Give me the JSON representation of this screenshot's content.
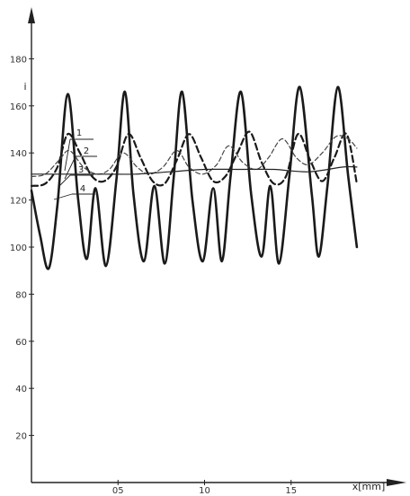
{
  "chart_data": {
    "type": "line",
    "title": "",
    "xlabel": "x[mm]",
    "ylabel": "i",
    "xlim": [
      0,
      2.0
    ],
    "ylim": [
      0,
      200
    ],
    "grid": false,
    "legend": "inline-labels",
    "x_ticks": [
      {
        "value": 0.5,
        "label": "05"
      },
      {
        "value": 1.0,
        "label": "10"
      },
      {
        "value": 1.5,
        "label": "15"
      }
    ],
    "y_ticks": [
      {
        "value": 20,
        "label": "20"
      },
      {
        "value": 40,
        "label": "40"
      },
      {
        "value": 60,
        "label": "60"
      },
      {
        "value": 80,
        "label": "80"
      },
      {
        "value": 100,
        "label": "100"
      },
      {
        "value": 120,
        "label": "120"
      },
      {
        "value": 140,
        "label": "140"
      },
      {
        "value": 160,
        "label": "160"
      },
      {
        "value": 180,
        "label": "180"
      }
    ],
    "series": [
      {
        "name": "1",
        "style": "solid-thick",
        "x": [
          0.0,
          0.05,
          0.1,
          0.15,
          0.21,
          0.27,
          0.32,
          0.37,
          0.43,
          0.49,
          0.54,
          0.59,
          0.65,
          0.71,
          0.77,
          0.82,
          0.87,
          0.93,
          0.99,
          1.05,
          1.1,
          1.15,
          1.21,
          1.27,
          1.33,
          1.38,
          1.43,
          1.49,
          1.55,
          1.62,
          1.66,
          1.71,
          1.77,
          1.83,
          1.88
        ],
        "y": [
          124,
          105,
          91,
          118,
          165,
          120,
          95,
          125,
          92,
          128,
          166,
          122,
          94,
          126,
          93,
          128,
          166,
          120,
          94,
          125,
          94,
          130,
          166,
          122,
          96,
          126,
          93,
          130,
          168,
          122,
          96,
          126,
          168,
          130,
          100
        ]
      },
      {
        "name": "2",
        "style": "dashed-thick",
        "x": [
          0.0,
          0.08,
          0.15,
          0.21,
          0.28,
          0.35,
          0.42,
          0.49,
          0.56,
          0.63,
          0.7,
          0.77,
          0.84,
          0.91,
          0.98,
          1.05,
          1.12,
          1.19,
          1.26,
          1.33,
          1.4,
          1.47,
          1.54,
          1.61,
          1.68,
          1.75,
          1.82,
          1.88
        ],
        "y": [
          126,
          127,
          134,
          148,
          140,
          130,
          128,
          134,
          148,
          138,
          128,
          127,
          137,
          148,
          138,
          128,
          130,
          140,
          149,
          136,
          127,
          130,
          148,
          137,
          128,
          138,
          148,
          127
        ]
      },
      {
        "name": "3",
        "style": "dashed-thin",
        "x": [
          0.0,
          0.08,
          0.16,
          0.22,
          0.3,
          0.38,
          0.45,
          0.53,
          0.61,
          0.68,
          0.76,
          0.84,
          0.91,
          0.99,
          1.07,
          1.14,
          1.22,
          1.3,
          1.37,
          1.45,
          1.53,
          1.6,
          1.68,
          1.76,
          1.83,
          1.88
        ],
        "y": [
          130,
          131,
          137,
          141,
          134,
          131,
          133,
          140,
          134,
          131,
          134,
          141,
          134,
          131,
          135,
          143,
          136,
          133,
          138,
          146,
          138,
          135,
          140,
          147,
          146,
          142
        ]
      },
      {
        "name": "4",
        "style": "solid-thin",
        "x": [
          0.0,
          0.2,
          0.4,
          0.6,
          0.8,
          1.0,
          1.2,
          1.4,
          1.6,
          1.8,
          1.88
        ],
        "y": [
          131,
          131,
          131,
          131,
          132,
          133,
          133,
          133,
          132,
          134,
          134
        ]
      }
    ]
  }
}
